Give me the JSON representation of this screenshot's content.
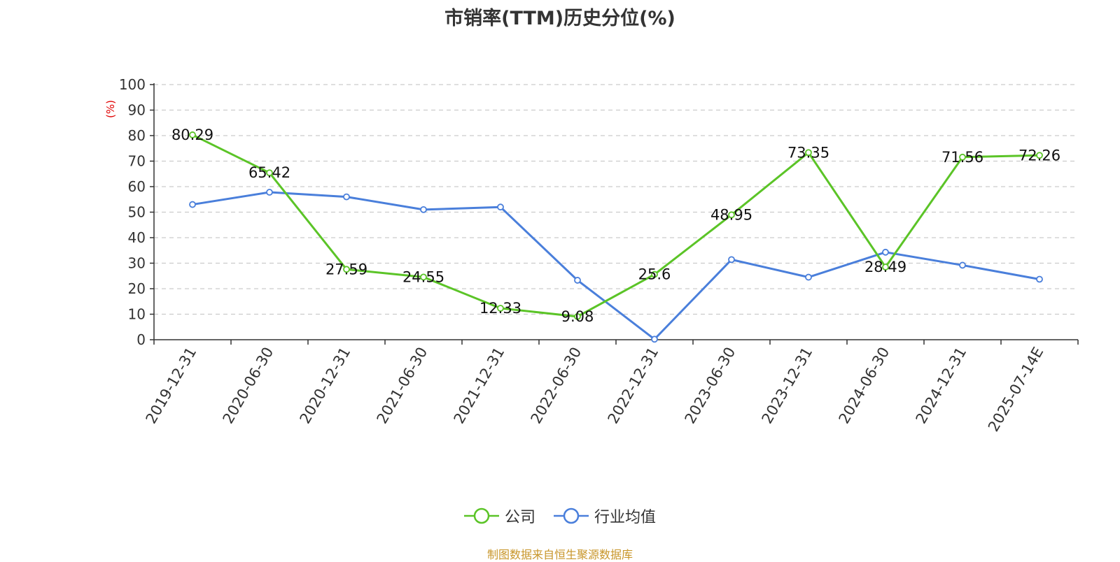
{
  "chart_data": {
    "type": "line",
    "title": "市销率(TTM)历史分位(%)",
    "ylabel": "(%)",
    "ylim": [
      0,
      100
    ],
    "yticks": [
      0,
      10,
      20,
      30,
      40,
      50,
      60,
      70,
      80,
      90,
      100
    ],
    "grid": true,
    "legend_position": "bottom-center",
    "categories": [
      "2019-12-31",
      "2020-06-30",
      "2020-12-31",
      "2021-06-30",
      "2021-12-31",
      "2022-06-30",
      "2022-12-31",
      "2023-06-30",
      "2023-12-31",
      "2024-06-30",
      "2024-12-31",
      "2025-07-14E"
    ],
    "series": [
      {
        "name": "公司",
        "color": "#5bc427",
        "values": [
          80.29,
          65.42,
          27.59,
          24.55,
          12.33,
          9.08,
          25.6,
          48.95,
          73.35,
          28.49,
          71.56,
          72.26
        ],
        "labels": [
          "80.29",
          "65.42",
          "27.59",
          "24.55",
          "12.33",
          "9.08",
          "25.6",
          "48.95",
          "73.35",
          "28.49",
          "71.56",
          "72.26"
        ]
      },
      {
        "name": "行业均值",
        "color": "#4a7fdb",
        "values": [
          53,
          57.8,
          56,
          51,
          52,
          23.3,
          0.2,
          31.4,
          24.5,
          34.3,
          29.2,
          23.7
        ]
      }
    ]
  },
  "source_note": "制图数据来自恒生聚源数据库",
  "colors": {
    "unit_label": "#e00000",
    "source_note": "#c8962a",
    "grid": "#cccccc",
    "axis": "#333333"
  }
}
